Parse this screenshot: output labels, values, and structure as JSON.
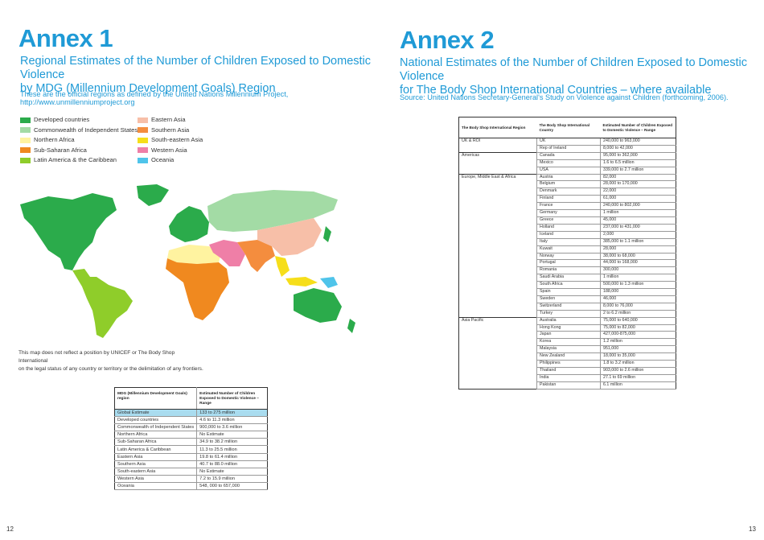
{
  "annex1": {
    "title": "Annex 1",
    "subtitle_line1": "Regional Estimates of the Number of Children Exposed to Domestic Violence",
    "subtitle_line2": "by MDG (Millennium Development Goals) Region",
    "note": "These are the official regions as defined by the United Nations Millennium Project, http://www.unmillenniumproject.org",
    "legend": [
      {
        "label": "Developed countries",
        "color": "#2bab4b"
      },
      {
        "label": "Commonwealth of Independent States",
        "color": "#a3dba5"
      },
      {
        "label": "Northern Africa",
        "color": "#fff3a0"
      },
      {
        "label": "Sub-Saharan Africa",
        "color": "#f0891f"
      },
      {
        "label": "Latin America & the Caribbean",
        "color": "#8fcd2a"
      },
      {
        "label": "Eastern Asia",
        "color": "#f7bfa8"
      },
      {
        "label": "Southern Asia",
        "color": "#f48d3e"
      },
      {
        "label": "South-eastern Asia",
        "color": "#f6de1a"
      },
      {
        "label": "Western Asia",
        "color": "#ef7fa7"
      },
      {
        "label": "Oceania",
        "color": "#4fc4ea"
      }
    ],
    "disclaimer_line1": "This map does not reflect a position by UNICEF or The Body Shop International",
    "disclaimer_line2": "on the legal status of any country or territory or the delimitation of any frontiers.",
    "table": {
      "header_col1": "MDG (Millennium Development Goals) region",
      "header_col2": "Estimated Number of Children Exposed to Domestic Violence – Range",
      "rows": [
        [
          "Global Estimate",
          "133 to 275 million"
        ],
        [
          "Developed countries",
          "4.6 to 11.3 million"
        ],
        [
          "Commonwealth of Independent States",
          "900,000 to 3.6 million"
        ],
        [
          "Northern Africa",
          "No Estimate"
        ],
        [
          "Sub-Saharan Africa",
          "34.9 to 38.2 million"
        ],
        [
          "Latin America & Caribbean",
          "11.3 to 25.5 million"
        ],
        [
          "Eastern Asia",
          "19.8 to 61.4 million"
        ],
        [
          "Southern Asia",
          "40.7 to 88.0 million"
        ],
        [
          "South-eastern Asia",
          "No Estimate"
        ],
        [
          "Western Asia",
          "7.2 to 15.9 million"
        ],
        [
          "Oceania",
          "548, 000 to 657,000"
        ]
      ]
    },
    "page_number": "12"
  },
  "annex2": {
    "title": "Annex 2",
    "subtitle_line1": "National Estimates of the Number of Children Exposed to Domestic Violence",
    "subtitle_line2": "for The Body Shop International Countries – where available",
    "note": "Source: United Nations Secretary-General's Study on Violence against Children (forthcoming, 2006).",
    "table": {
      "header_col1": "The Body Shop International Region",
      "header_col2": "The Body Shop International Country",
      "header_col3": "Estimated Number of Children Exposed to Domestic Violence – Range",
      "groups": [
        {
          "region": "UK & ROI",
          "rows": [
            [
              "UK",
              "240,000 to 963,000"
            ],
            [
              "Rep of Ireland",
              "8,000 to 42,000"
            ]
          ]
        },
        {
          "region": "Americas",
          "rows": [
            [
              "Canada",
              "95,000 to 362,000"
            ],
            [
              "Mexico",
              "1.6 to 6.5 million"
            ],
            [
              "USA",
              "339,000 to 2.7 million"
            ]
          ]
        },
        {
          "region": "Europe, Middle East & Africa",
          "rows": [
            [
              "Austria",
              "82,000"
            ],
            [
              "Belgium",
              "28,000 to 170,000"
            ],
            [
              "Denmark",
              "22,000"
            ],
            [
              "Finland",
              "61,000"
            ],
            [
              "France",
              "240,000 to 802,000"
            ],
            [
              "Germany",
              "1 million"
            ],
            [
              "Greece",
              "45,000"
            ],
            [
              "Holland",
              "237,000 to 431,000"
            ],
            [
              "Iceland",
              "2,000"
            ],
            [
              "Italy",
              "385,000 to 1.1 million"
            ],
            [
              "Kuwait",
              "28,000"
            ],
            [
              "Norway",
              "38,000 to 68,000"
            ],
            [
              "Portugal",
              "44,000 to 168,000"
            ],
            [
              "Romania",
              "300,000"
            ],
            [
              "Saudi Arabia",
              "1 million"
            ],
            [
              "South Africa",
              "500,000 to 1.3 million"
            ],
            [
              "Spain",
              "188,000"
            ],
            [
              "Sweden",
              "46,000"
            ],
            [
              "Switzerland",
              "8,000 to 76,000"
            ],
            [
              "Turkey",
              "2 to 6.2 million"
            ]
          ]
        },
        {
          "region": "Asia Pacific",
          "rows": [
            [
              "Australia",
              "75,000 to 640,000"
            ],
            [
              "Hong Kong",
              "75,000 to 82,000"
            ],
            [
              "Japan",
              "427,000-875,000"
            ],
            [
              "Korea",
              "1.2 million"
            ],
            [
              "Malaysia",
              "951,000"
            ],
            [
              "New Zealand",
              "18,000 to 35,000"
            ],
            [
              "Philippines",
              "1.8 to 3.2 million"
            ],
            [
              "Thailand",
              "903,000 to 2.6 million"
            ],
            [
              "India",
              "27.1 to 69 million"
            ],
            [
              "Pakistan",
              "6.1 million"
            ]
          ]
        }
      ]
    },
    "page_number": "13"
  }
}
